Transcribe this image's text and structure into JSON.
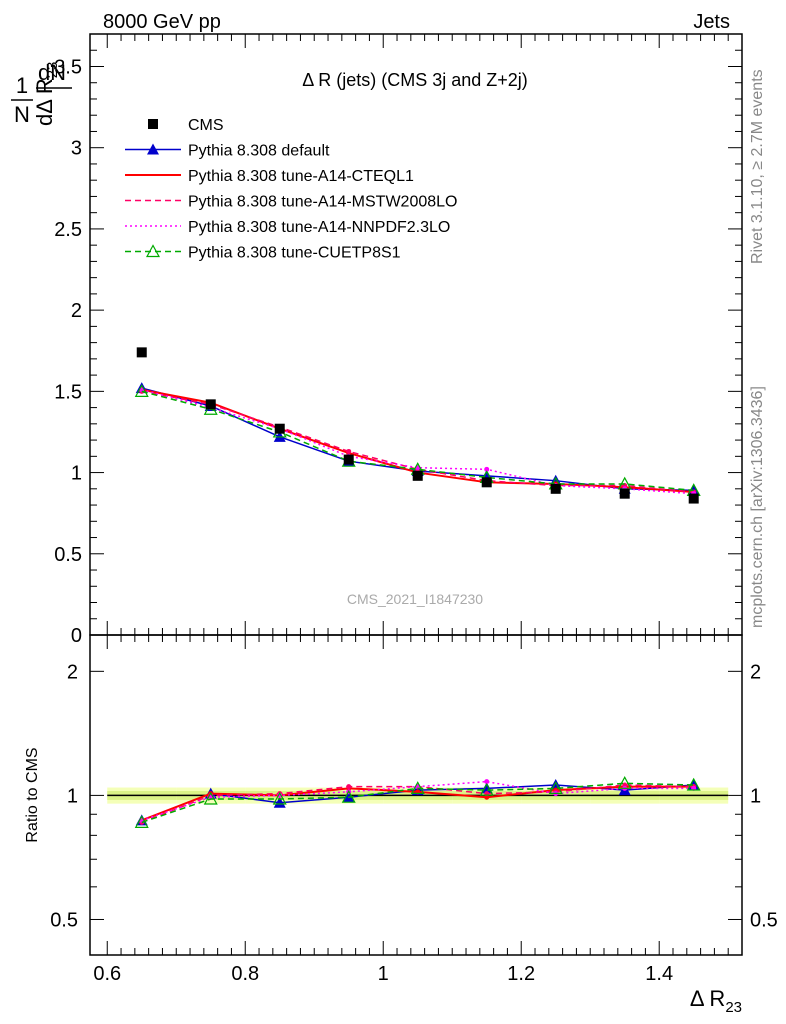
{
  "header": {
    "left": "8000 GeV pp",
    "right": "Jets"
  },
  "side_labels": {
    "rivet": "Rivet 3.1.10, ≥ 2.7M events",
    "mcplots": "mcplots.cern.ch [arXiv:1306.3436]"
  },
  "watermark": "CMS_2021_I1847230",
  "chart_data": [
    {
      "type": "line",
      "title": "Δ R (jets) (CMS 3j and Z+2j)",
      "ylabel": "1/N dN/dΔ R23",
      "xlim": [
        0.575,
        1.52
      ],
      "ylim": [
        0,
        3.7
      ],
      "yticks": [
        "0",
        "0.5",
        "1",
        "1.5",
        "2",
        "2.5",
        "3",
        "3.5"
      ],
      "x": [
        0.65,
        0.75,
        0.85,
        0.95,
        1.05,
        1.15,
        1.25,
        1.35,
        1.45
      ],
      "data_series": {
        "name": "CMS",
        "values": [
          1.74,
          1.42,
          1.27,
          1.08,
          0.98,
          0.94,
          0.9,
          0.87,
          0.84
        ]
      },
      "series": [
        {
          "name": "Pythia 8.308 default",
          "color": "#0000cc",
          "style": "solid-triangle",
          "values": [
            1.52,
            1.41,
            1.22,
            1.07,
            1.01,
            0.98,
            0.95,
            0.9,
            0.89
          ]
        },
        {
          "name": "Pythia 8.308 tune-A14-CTEQL1",
          "color": "#ff0000",
          "style": "solid",
          "values": [
            1.51,
            1.43,
            1.27,
            1.12,
            1.0,
            0.94,
            0.93,
            0.91,
            0.88
          ]
        },
        {
          "name": "Pythia 8.308 tune-A14-MSTW2008LO",
          "color": "#ff0066",
          "style": "dashed",
          "values": [
            1.5,
            1.42,
            1.28,
            1.13,
            1.02,
            0.95,
            0.92,
            0.92,
            0.88
          ]
        },
        {
          "name": "Pythia 8.308 tune-A14-NNPDF2.3LO",
          "color": "#ff00ff",
          "style": "dotted",
          "values": [
            1.51,
            1.4,
            1.27,
            1.1,
            1.03,
            1.02,
            0.92,
            0.9,
            0.87
          ]
        },
        {
          "name": "Pythia 8.308 tune-CUETP8S1",
          "color": "#00aa00",
          "style": "dashed-open-triangle",
          "values": [
            1.5,
            1.39,
            1.25,
            1.07,
            1.02,
            0.97,
            0.93,
            0.93,
            0.89
          ]
        }
      ],
      "legend_placement": "top-left"
    },
    {
      "type": "line",
      "title": "",
      "xlabel": "Δ R23",
      "ylabel": "Ratio to CMS",
      "xlim": [
        0.575,
        1.52
      ],
      "ylim": [
        0.41,
        2.45
      ],
      "yscale": "log",
      "yticks": [
        "0.5",
        "1",
        "2"
      ],
      "xticks": [
        "0.6",
        "0.8",
        "1",
        "1.2",
        "1.4"
      ],
      "x": [
        0.65,
        0.75,
        0.85,
        0.95,
        1.05,
        1.15,
        1.25,
        1.35,
        1.45
      ],
      "band": {
        "inner": 0.025,
        "outer": 0.045
      },
      "series": [
        {
          "name": "Pythia 8.308 default",
          "color": "#0000cc",
          "values": [
            0.87,
            1.01,
            0.96,
            0.99,
            1.03,
            1.04,
            1.06,
            1.03,
            1.06
          ]
        },
        {
          "name": "Pythia 8.308 tune-A14-CTEQL1",
          "color": "#ff0000",
          "values": [
            0.87,
            1.01,
            1.0,
            1.04,
            1.02,
            0.99,
            1.03,
            1.05,
            1.05
          ]
        },
        {
          "name": "Pythia 8.308 tune-A14-MSTW2008LO",
          "color": "#ff0066",
          "values": [
            0.86,
            1.0,
            1.01,
            1.05,
            1.05,
            1.01,
            1.02,
            1.06,
            1.05
          ]
        },
        {
          "name": "Pythia 8.308 tune-A14-NNPDF2.3LO",
          "color": "#ff00ff",
          "values": [
            0.87,
            0.99,
            1.0,
            1.02,
            1.05,
            1.08,
            1.01,
            1.04,
            1.04
          ]
        },
        {
          "name": "Pythia 8.308 tune-CUETP8S1",
          "color": "#00aa00",
          "values": [
            0.86,
            0.98,
            0.98,
            0.99,
            1.04,
            1.03,
            1.04,
            1.07,
            1.06
          ]
        }
      ]
    }
  ]
}
